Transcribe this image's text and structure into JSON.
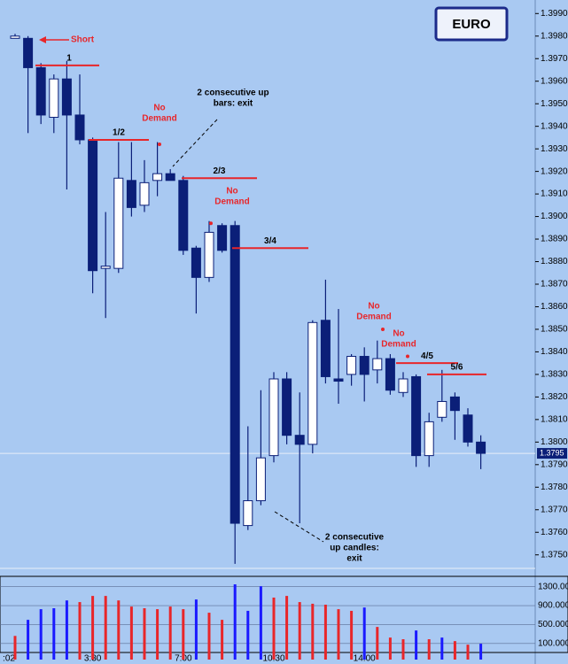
{
  "chart_data": {
    "type": "candlestick",
    "badge": "EURO",
    "categories": [
      ":02",
      null,
      null,
      null,
      null,
      null,
      "3:30",
      null,
      null,
      null,
      null,
      null,
      null,
      "7:00",
      null,
      null,
      null,
      null,
      null,
      null,
      "10:30",
      null,
      null,
      null,
      null,
      null,
      null,
      "14:00",
      null,
      null,
      null,
      null,
      null,
      null,
      null,
      null,
      null
    ],
    "open": [
      1.3979,
      1.3979,
      1.3966,
      1.3944,
      1.3961,
      1.3945,
      1.3934,
      1.3877,
      1.3877,
      1.3916,
      1.3905,
      1.3916,
      1.3919,
      1.3916,
      1.3886,
      1.3873,
      1.3896,
      1.3896,
      1.3763,
      1.3774,
      1.3794,
      1.3828,
      1.3803,
      1.3799,
      1.3854,
      1.3828,
      1.383,
      1.3838,
      1.3832,
      1.3837,
      1.3822,
      1.3829,
      1.3794,
      1.3811,
      1.382,
      1.3812,
      1.38
    ],
    "high": [
      1.3981,
      1.398,
      1.3968,
      1.3963,
      1.3969,
      1.3963,
      1.3935,
      1.3902,
      1.3933,
      1.3933,
      1.3925,
      1.3933,
      1.3921,
      1.3918,
      1.3887,
      1.3898,
      1.3897,
      1.3898,
      1.3807,
      1.3823,
      1.3831,
      1.3831,
      1.3822,
      1.3854,
      1.3872,
      1.3859,
      1.3839,
      1.3842,
      1.3845,
      1.3839,
      1.3831,
      1.383,
      1.3813,
      1.3832,
      1.3822,
      1.3815,
      1.3803
    ],
    "low": [
      1.3979,
      1.3937,
      1.3941,
      1.3937,
      1.3912,
      1.3932,
      1.3866,
      1.3855,
      1.3875,
      1.39,
      1.3902,
      1.3909,
      1.3916,
      1.3883,
      1.3857,
      1.3871,
      1.3884,
      1.3746,
      1.3761,
      1.3772,
      1.3791,
      1.3799,
      1.3764,
      1.3795,
      1.3826,
      1.3817,
      1.3825,
      1.3818,
      1.3826,
      1.3821,
      1.382,
      1.3789,
      1.3789,
      1.3809,
      1.3801,
      1.3798,
      1.3788
    ],
    "close": [
      1.398,
      1.3966,
      1.3945,
      1.3961,
      1.3945,
      1.3934,
      1.3876,
      1.3878,
      1.3917,
      1.3904,
      1.3915,
      1.3919,
      1.3916,
      1.3885,
      1.3873,
      1.3893,
      1.3885,
      1.3764,
      1.3774,
      1.3793,
      1.3828,
      1.3803,
      1.3799,
      1.3853,
      1.3829,
      1.3827,
      1.3838,
      1.383,
      1.3837,
      1.3823,
      1.3828,
      1.3794,
      1.3809,
      1.3818,
      1.3814,
      1.38,
      1.3795
    ],
    "up_color": "#ffffff",
    "down_color": "#0b1f78",
    "ylim": [
      1.3744,
      1.3996
    ],
    "yticks": [
      {
        "value": 1.399,
        "label": "1.3990"
      },
      {
        "value": 1.398,
        "label": "1.3980"
      },
      {
        "value": 1.397,
        "label": "1.3970"
      },
      {
        "value": 1.396,
        "label": "1.3960"
      },
      {
        "value": 1.395,
        "label": "1.3950"
      },
      {
        "value": 1.394,
        "label": "1.3940"
      },
      {
        "value": 1.393,
        "label": "1.3930"
      },
      {
        "value": 1.392,
        "label": "1.3920"
      },
      {
        "value": 1.391,
        "label": "1.3910"
      },
      {
        "value": 1.39,
        "label": "1.3900"
      },
      {
        "value": 1.389,
        "label": "1.3890"
      },
      {
        "value": 1.388,
        "label": "1.3880"
      },
      {
        "value": 1.387,
        "label": "1.3870"
      },
      {
        "value": 1.386,
        "label": "1.3860"
      },
      {
        "value": 1.385,
        "label": "1.3850"
      },
      {
        "value": 1.384,
        "label": "1.3840"
      },
      {
        "value": 1.383,
        "label": "1.3830"
      },
      {
        "value": 1.382,
        "label": "1.3820"
      },
      {
        "value": 1.381,
        "label": "1.3810"
      },
      {
        "value": 1.38,
        "label": "1.3800"
      },
      {
        "value": 1.379,
        "label": "1.3790"
      },
      {
        "value": 1.378,
        "label": "1.3780"
      },
      {
        "value": 1.377,
        "label": "1.3770"
      },
      {
        "value": 1.376,
        "label": "1.3760"
      },
      {
        "value": 1.375,
        "label": "1.3750"
      }
    ],
    "last_price": {
      "value": 1.3795,
      "label": "1.3795"
    },
    "volume": [
      260,
      600,
      825,
      845,
      1010,
      975,
      1105,
      1105,
      1010,
      880,
      845,
      825,
      880,
      825,
      1030,
      750,
      600,
      1350,
      790,
      1310,
      1070,
      1105,
      975,
      940,
      920,
      825,
      790,
      860,
      450,
      225,
      190,
      375,
      190,
      225,
      150,
      75,
      95
    ],
    "volume_colors": [
      "#e8262a",
      "#1a1aff",
      "#1a1aff",
      "#1a1aff",
      "#1a1aff",
      "#e8262a",
      "#e8262a",
      "#e8262a",
      "#e8262a",
      "#e8262a",
      "#e8262a",
      "#e8262a",
      "#e8262a",
      "#e8262a",
      "#1a1aff",
      "#e8262a",
      "#e8262a",
      "#1a1aff",
      "#1a1aff",
      "#1a1aff",
      "#e8262a",
      "#e8262a",
      "#e8262a",
      "#e8262a",
      "#e8262a",
      "#e8262a",
      "#e8262a",
      "#1a1aff",
      "#e8262a",
      "#e8262a",
      "#e8262a",
      "#1a1aff",
      "#e8262a",
      "#1a1aff",
      "#e8262a",
      "#e8262a",
      "#1a1aff"
    ],
    "volume_ylim": [
      -240,
      1500
    ],
    "volume_ticks": [
      {
        "value": 1300,
        "label": "1300.000"
      },
      {
        "value": 900,
        "label": "900.000"
      },
      {
        "value": 500,
        "label": "500.000"
      },
      {
        "value": 100,
        "label": "100.000"
      }
    ],
    "levels": [
      {
        "label": "1",
        "value": 1.3967
      },
      {
        "label": "1/2",
        "value": 1.3934
      },
      {
        "label": "2/3",
        "value": 1.3917
      },
      {
        "label": "3/4",
        "value": 1.3886
      },
      {
        "label": "4/5",
        "value": 1.3835
      },
      {
        "label": "5/6",
        "value": 1.383
      }
    ],
    "no_demand": [
      {
        "lines": [
          "No",
          "Demand"
        ],
        "dot": 1.3932
      },
      {
        "lines": [
          "No",
          "Demand"
        ],
        "dot": 1.3897
      },
      {
        "lines": [
          "No",
          "Demand"
        ],
        "dot": 1.385
      },
      {
        "lines": [
          "No",
          "Demand"
        ],
        "dot": 1.3838
      }
    ],
    "short_label": "Short",
    "exit_notes": [
      {
        "lines": [
          "2 consecutive up",
          "bars: exit"
        ]
      },
      {
        "lines": [
          "2 consecutive",
          "up candles:",
          "exit"
        ]
      }
    ]
  }
}
